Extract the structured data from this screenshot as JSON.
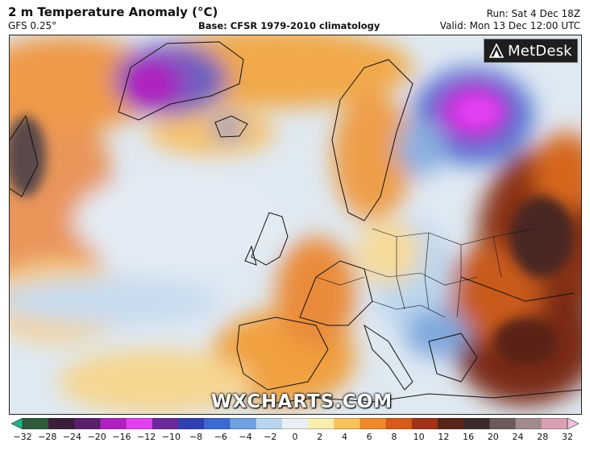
{
  "header": {
    "title": "2 m Temperature Anomaly (°C)",
    "model": "GFS 0.25°",
    "base": "Base: CFSR 1979-2010 climatology",
    "run": "Run: Sat 4 Dec 18Z",
    "valid": "Valid: Mon 13 Dec 12:00 UTC"
  },
  "logo": {
    "text": "MetDesk",
    "icon": "metdesk-logo-icon"
  },
  "watermark": "WXCHARTS.COM",
  "colorbar": {
    "ticks": [
      "−32",
      "−28",
      "−24",
      "−20",
      "−16",
      "−12",
      "−10",
      "−8",
      "−6",
      "−4",
      "−2",
      "0",
      "2",
      "4",
      "6",
      "8",
      "10",
      "12",
      "16",
      "20",
      "24",
      "28",
      "32"
    ],
    "colors": [
      "#1fb08a",
      "#2d5a3a",
      "#3a1f3a",
      "#5a1f6a",
      "#b020c0",
      "#e040f0",
      "#6a2a9a",
      "#3040b0",
      "#3a6ad0",
      "#70a0e0",
      "#b8d4ee",
      "#e8f0f6",
      "#f8eeb0",
      "#f6c25a",
      "#ee8a2a",
      "#d85a1a",
      "#a0321a",
      "#5a2418",
      "#3a2a2a",
      "#6a5a5a",
      "#a08a8a",
      "#d8a0b0",
      "#f0c0d8"
    ]
  },
  "colors": {
    "sea_neutral": "#e6eef5",
    "warm": "#f3b04a",
    "hot": "#d4621f",
    "very_hot": "#5a2418",
    "cold": "#3a6ad0",
    "very_cold": "#c02ad8"
  }
}
